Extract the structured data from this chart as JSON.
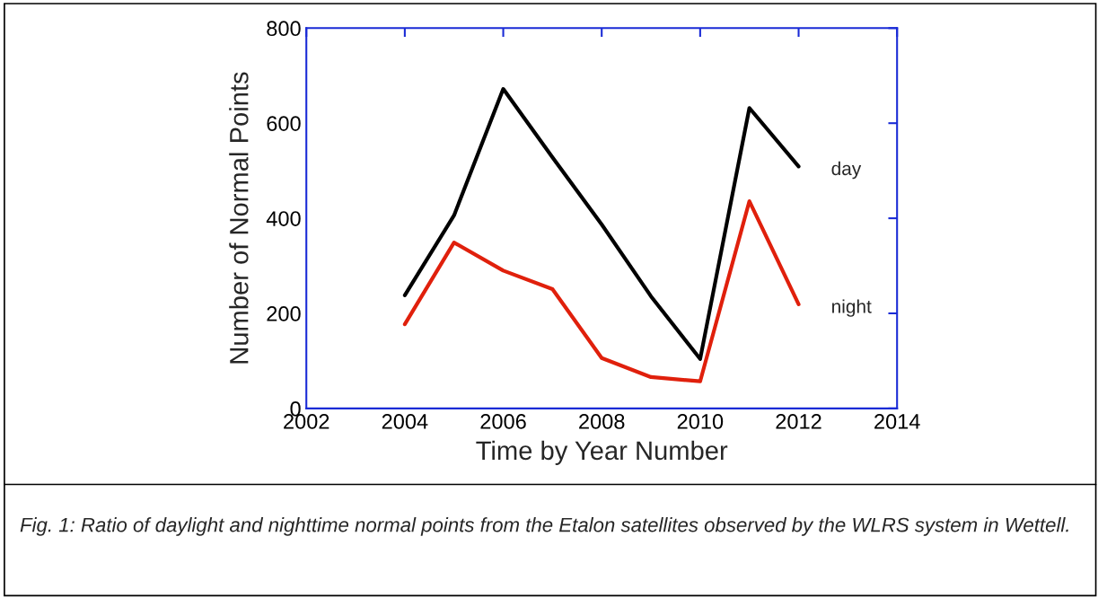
{
  "chart_data": {
    "type": "line",
    "xlabel": "Time by Year Number",
    "ylabel": "Number of Normal Points",
    "x": [
      2004,
      2005,
      2006,
      2007,
      2008,
      2009,
      2010,
      2011,
      2012
    ],
    "series": [
      {
        "name": "day",
        "color": "#000000",
        "values": [
          238,
          406,
          672,
          528,
          387,
          236,
          104,
          632,
          509
        ]
      },
      {
        "name": "night",
        "color": "#e0200c",
        "values": [
          177,
          349,
          290,
          251,
          106,
          66,
          57,
          436,
          219
        ]
      }
    ],
    "xlim": [
      2002,
      2014
    ],
    "xticks": [
      2002,
      2004,
      2006,
      2008,
      2010,
      2012,
      2014
    ],
    "ylim": [
      0,
      800
    ],
    "yticks": [
      0,
      200,
      400,
      600,
      800
    ],
    "grid": false,
    "legend": false,
    "marker": "none",
    "line_style": "solid",
    "annotations": [
      "Fig. 1: Ratio of daylight and nighttime normal points from the Etalon satellites observed by the WLRS system in Wettell."
    ]
  }
}
